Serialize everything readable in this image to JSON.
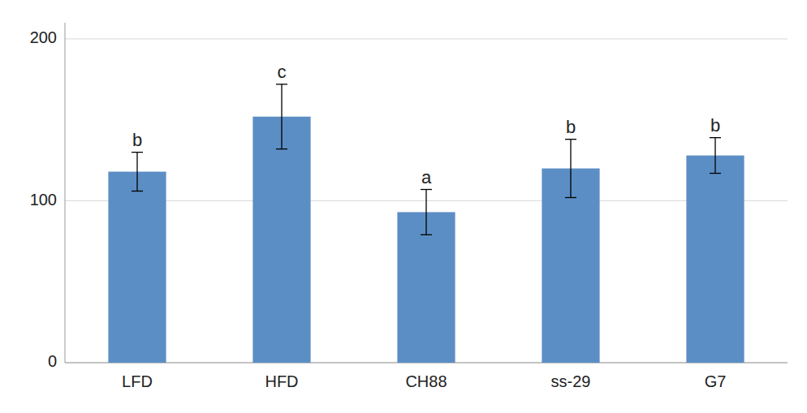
{
  "chart_data": {
    "type": "bar",
    "categories": [
      "LFD",
      "HFD",
      "CH88",
      "ss-29",
      "G7"
    ],
    "values": [
      118,
      152,
      93,
      120,
      128
    ],
    "errors": [
      12,
      20,
      14,
      18,
      11
    ],
    "annotations": [
      "b",
      "c",
      "a",
      "b",
      "b"
    ],
    "color": "#5b8ec4",
    "ylim": [
      0,
      210
    ],
    "yticks": [
      0,
      100,
      200
    ],
    "grid": true
  }
}
